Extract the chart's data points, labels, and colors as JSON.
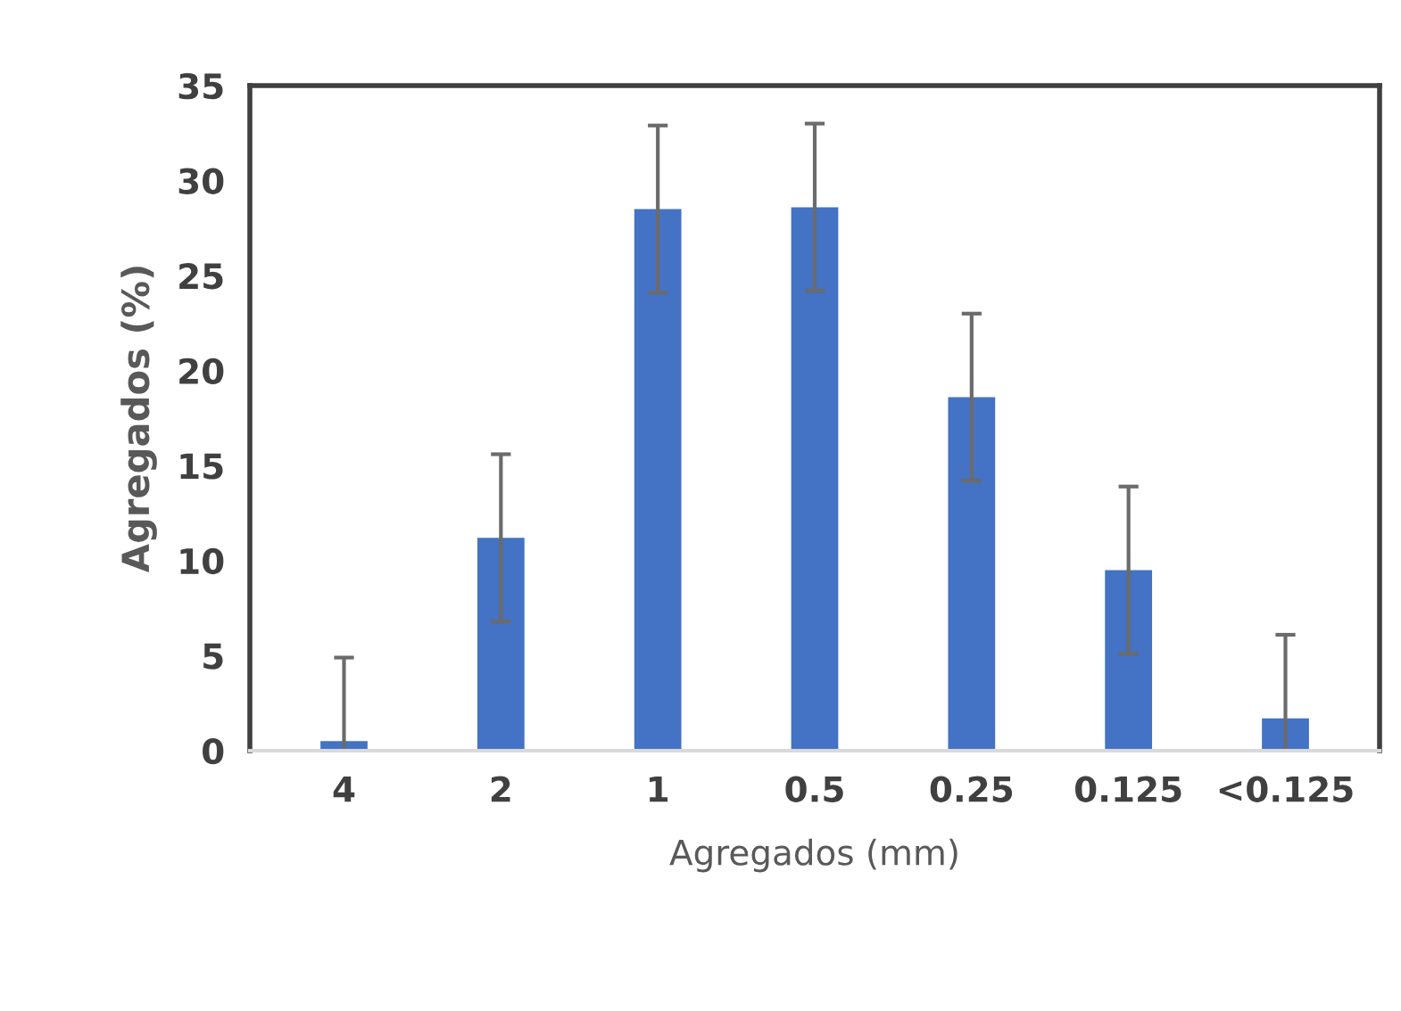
{
  "chart_data": {
    "type": "bar",
    "xlabel": "Agregados (mm)",
    "ylabel": "Agregados (%)",
    "categories": [
      "4",
      "2",
      "1",
      "0.5",
      "0.25",
      "0.125",
      "<0.125"
    ],
    "values": [
      0.5,
      11.2,
      28.5,
      28.6,
      18.6,
      9.5,
      1.7
    ],
    "errors": [
      4.4,
      4.4,
      4.4,
      4.4,
      4.4,
      4.4,
      4.4
    ],
    "color": "#4472c4",
    "ylim": [
      0,
      35
    ],
    "yticks": [
      0,
      5,
      10,
      15,
      20,
      25,
      30,
      35
    ],
    "grid": false,
    "legend": false
  }
}
